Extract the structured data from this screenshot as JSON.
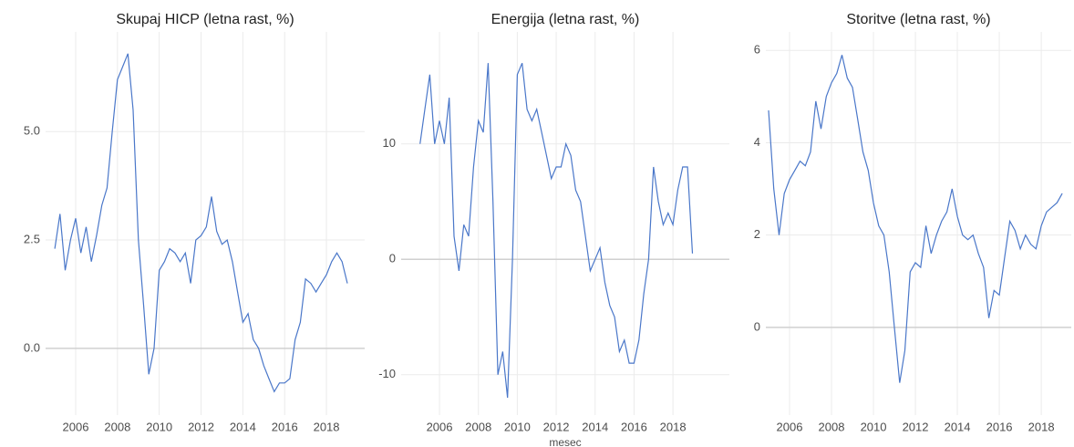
{
  "chart_data": [
    {
      "type": "line",
      "title": "Skupaj HICP (letna rast, %)",
      "x": [
        2005,
        2005.25,
        2005.5,
        2005.75,
        2006,
        2006.25,
        2006.5,
        2006.75,
        2007,
        2007.25,
        2007.5,
        2007.75,
        2008,
        2008.25,
        2008.5,
        2008.75,
        2009,
        2009.25,
        2009.5,
        2009.75,
        2010,
        2010.25,
        2010.5,
        2010.75,
        2011,
        2011.25,
        2011.5,
        2011.75,
        2012,
        2012.25,
        2012.5,
        2012.75,
        2013,
        2013.25,
        2013.5,
        2013.75,
        2014,
        2014.25,
        2014.5,
        2014.75,
        2015,
        2015.25,
        2015.5,
        2015.75,
        2016,
        2016.25,
        2016.5,
        2016.75,
        2017,
        2017.25,
        2017.5,
        2017.75,
        2018,
        2018.25,
        2018.5,
        2018.75,
        2019
      ],
      "series": [
        {
          "name": "Skupaj HICP",
          "color": "#4a77c9",
          "values": [
            2.3,
            3.1,
            1.8,
            2.5,
            3.0,
            2.2,
            2.8,
            2.0,
            2.6,
            3.3,
            3.7,
            5.0,
            6.2,
            6.5,
            6.8,
            5.5,
            2.5,
            1.0,
            -0.6,
            0.0,
            1.8,
            2.0,
            2.3,
            2.2,
            2.0,
            2.2,
            1.5,
            2.5,
            2.6,
            2.8,
            3.5,
            2.7,
            2.4,
            2.5,
            2.0,
            1.3,
            0.6,
            0.8,
            0.2,
            0.0,
            -0.4,
            -0.7,
            -1.0,
            -0.8,
            -0.8,
            -0.7,
            0.2,
            0.6,
            1.6,
            1.5,
            1.3,
            1.5,
            1.7,
            2.0,
            2.2,
            2.0,
            1.5
          ]
        }
      ],
      "xlim": [
        2004.56,
        2019.83
      ],
      "ylim": [
        -1.54,
        7.3
      ],
      "xticks": [
        2006,
        2008,
        2010,
        2012,
        2014,
        2016,
        2018
      ],
      "yticks": [
        {
          "value": 0,
          "label": "0.0"
        },
        {
          "value": 2.5,
          "label": "2.5"
        },
        {
          "value": 5,
          "label": "5.0"
        }
      ],
      "grid": true
    },
    {
      "type": "line",
      "title": "Energija (letna rast, %)",
      "x_label": "mesec",
      "x": [
        2005,
        2005.25,
        2005.5,
        2005.75,
        2006,
        2006.25,
        2006.5,
        2006.75,
        2007,
        2007.25,
        2007.5,
        2007.75,
        2008,
        2008.25,
        2008.5,
        2008.75,
        2009,
        2009.25,
        2009.5,
        2009.75,
        2010,
        2010.25,
        2010.5,
        2010.75,
        2011,
        2011.25,
        2011.5,
        2011.75,
        2012,
        2012.25,
        2012.5,
        2012.75,
        2013,
        2013.25,
        2013.5,
        2013.75,
        2014,
        2014.25,
        2014.5,
        2014.75,
        2015,
        2015.25,
        2015.5,
        2015.75,
        2016,
        2016.25,
        2016.5,
        2016.75,
        2017,
        2017.25,
        2017.5,
        2017.75,
        2018,
        2018.25,
        2018.5,
        2018.75,
        2019
      ],
      "series": [
        {
          "name": "Energija",
          "color": "#4a77c9",
          "values": [
            10,
            13,
            16,
            10,
            12,
            10,
            14,
            2,
            -1,
            3,
            2,
            8,
            12,
            11,
            17,
            5,
            -10,
            -8,
            -12,
            0,
            16,
            17,
            13,
            12,
            13,
            11,
            9,
            7,
            8,
            8,
            10,
            9,
            6,
            5,
            2,
            -1,
            0,
            1,
            -2,
            -4,
            -5,
            -8,
            -7,
            -9,
            -9,
            -7,
            -3,
            0,
            8,
            5,
            3,
            4,
            3,
            6,
            8,
            8,
            0.5
          ]
        }
      ],
      "xlim": [
        2004.03,
        2020.9
      ],
      "ylim": [
        -13.5,
        19.7
      ],
      "xticks": [
        2006,
        2008,
        2010,
        2012,
        2014,
        2016,
        2018
      ],
      "yticks": [
        -10,
        0,
        10
      ],
      "grid": true
    },
    {
      "type": "line",
      "title": "Storitve (letna rast, %)",
      "x": [
        2005,
        2005.25,
        2005.5,
        2005.75,
        2006,
        2006.25,
        2006.5,
        2006.75,
        2007,
        2007.25,
        2007.5,
        2007.75,
        2008,
        2008.25,
        2008.5,
        2008.75,
        2009,
        2009.25,
        2009.5,
        2009.75,
        2010,
        2010.25,
        2010.5,
        2010.75,
        2011,
        2011.25,
        2011.5,
        2011.75,
        2012,
        2012.25,
        2012.5,
        2012.75,
        2013,
        2013.25,
        2013.5,
        2013.75,
        2014,
        2014.25,
        2014.5,
        2014.75,
        2015,
        2015.25,
        2015.5,
        2015.75,
        2016,
        2016.25,
        2016.5,
        2016.75,
        2017,
        2017.25,
        2017.5,
        2017.75,
        2018,
        2018.25,
        2018.5,
        2018.75,
        2019
      ],
      "series": [
        {
          "name": "Storitve",
          "color": "#4a77c9",
          "values": [
            4.7,
            3.0,
            2.0,
            2.9,
            3.2,
            3.4,
            3.6,
            3.5,
            3.8,
            4.9,
            4.3,
            5.0,
            5.3,
            5.5,
            5.9,
            5.4,
            5.2,
            4.5,
            3.8,
            3.4,
            2.7,
            2.2,
            2.0,
            1.2,
            0.0,
            -1.2,
            -0.5,
            1.2,
            1.4,
            1.3,
            2.2,
            1.6,
            2.0,
            2.3,
            2.5,
            3.0,
            2.4,
            2.0,
            1.9,
            2.0,
            1.6,
            1.3,
            0.2,
            0.8,
            0.7,
            1.5,
            2.3,
            2.1,
            1.7,
            2.0,
            1.8,
            1.7,
            2.2,
            2.5,
            2.6,
            2.7,
            2.9
          ]
        }
      ],
      "xlim": [
        2004.87,
        2019.43
      ],
      "ylim": [
        -1.9,
        6.4
      ],
      "xticks": [
        2006,
        2008,
        2010,
        2012,
        2014,
        2016,
        2018
      ],
      "yticks": [
        0,
        2,
        4,
        6
      ],
      "grid": true
    }
  ]
}
